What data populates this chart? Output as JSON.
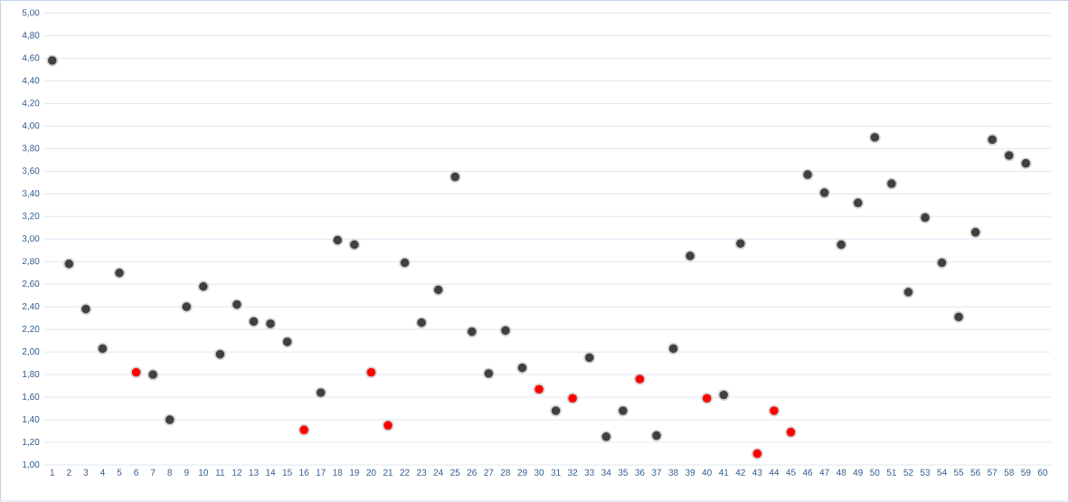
{
  "chart_data": {
    "type": "scatter",
    "categories": [
      "1",
      "2",
      "3",
      "4",
      "5",
      "6",
      "7",
      "8",
      "9",
      "10",
      "11",
      "12",
      "13",
      "14",
      "15",
      "16",
      "17",
      "18",
      "19",
      "20",
      "21",
      "22",
      "23",
      "24",
      "25",
      "26",
      "27",
      "28",
      "29",
      "30",
      "31",
      "32",
      "33",
      "34",
      "35",
      "36",
      "37",
      "38",
      "39",
      "40",
      "41",
      "42",
      "43",
      "44",
      "45",
      "46",
      "47",
      "48",
      "49",
      "50",
      "51",
      "52",
      "53",
      "54",
      "55",
      "56",
      "57",
      "58",
      "59",
      "60"
    ],
    "series": [
      {
        "color": "#404040",
        "values": [
          4.58,
          2.78,
          2.38,
          2.03,
          2.7,
          null,
          1.8,
          1.4,
          2.4,
          2.58,
          1.98,
          2.42,
          2.27,
          2.25,
          2.09,
          null,
          1.64,
          2.99,
          2.95,
          null,
          null,
          2.79,
          2.26,
          2.55,
          3.55,
          2.18,
          1.81,
          2.19,
          1.86,
          null,
          1.48,
          null,
          1.95,
          1.25,
          1.48,
          null,
          1.26,
          2.03,
          2.85,
          null,
          1.62,
          2.96,
          null,
          null,
          null,
          3.57,
          3.41,
          2.95,
          3.32,
          3.9,
          3.49,
          2.53,
          3.19,
          2.79,
          2.31,
          3.06,
          3.88,
          3.74,
          3.67,
          null
        ]
      },
      {
        "color": "#ff0000",
        "values": [
          null,
          null,
          null,
          null,
          null,
          1.82,
          null,
          null,
          null,
          null,
          null,
          null,
          null,
          null,
          null,
          1.31,
          null,
          null,
          null,
          1.82,
          1.35,
          null,
          null,
          null,
          null,
          null,
          null,
          null,
          null,
          1.67,
          null,
          1.59,
          null,
          null,
          null,
          1.76,
          null,
          null,
          null,
          1.59,
          null,
          null,
          1.1,
          1.48,
          1.29,
          null,
          null,
          null,
          null,
          null,
          null,
          null,
          null,
          null,
          null,
          null,
          null,
          null,
          null,
          null
        ]
      }
    ],
    "ylim": [
      1.0,
      5.0
    ],
    "yticks": [
      {
        "value": 1.0,
        "label": "1,00"
      },
      {
        "value": 1.2,
        "label": "1,20"
      },
      {
        "value": 1.4,
        "label": "1,40"
      },
      {
        "value": 1.6,
        "label": "1,60"
      },
      {
        "value": 1.8,
        "label": "1,80"
      },
      {
        "value": 2.0,
        "label": "2,00"
      },
      {
        "value": 2.2,
        "label": "2,20"
      },
      {
        "value": 2.4,
        "label": "2,40"
      },
      {
        "value": 2.6,
        "label": "2,60"
      },
      {
        "value": 2.8,
        "label": "2,80"
      },
      {
        "value": 3.0,
        "label": "3,00"
      },
      {
        "value": 3.2,
        "label": "3,20"
      },
      {
        "value": 3.4,
        "label": "3,40"
      },
      {
        "value": 3.6,
        "label": "3,60"
      },
      {
        "value": 3.8,
        "label": "3,80"
      },
      {
        "value": 4.0,
        "label": "4,00"
      },
      {
        "value": 4.2,
        "label": "4,20"
      },
      {
        "value": 4.4,
        "label": "4,40"
      },
      {
        "value": 4.6,
        "label": "4,60"
      },
      {
        "value": 4.8,
        "label": "4,80"
      },
      {
        "value": 5.0,
        "label": "5,00"
      }
    ],
    "grid": "y"
  }
}
